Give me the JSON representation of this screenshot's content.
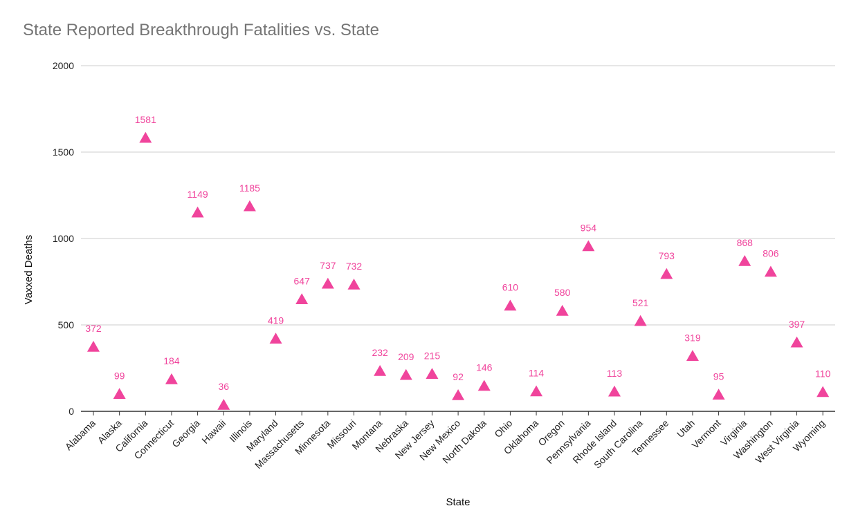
{
  "chart_data": {
    "type": "scatter",
    "title": "State Reported Breakthrough Fatalities vs. State",
    "xlabel": "State",
    "ylabel": "Vaxxed Deaths",
    "ylim": [
      0,
      2000
    ],
    "yticks": [
      0,
      500,
      1000,
      1500,
      2000
    ],
    "grid": true,
    "legend": "none",
    "marker": "triangle",
    "color": "#f0449c",
    "categories": [
      "Alabama",
      "Alaska",
      "California",
      "Connecticut",
      "Georgia",
      "Hawaii",
      "Illinois",
      "Maryland",
      "Massachusetts",
      "Minnesota",
      "Missouri",
      "Montana",
      "Nebraska",
      "New Jersey",
      "New Mexico",
      "North Dakota",
      "Ohio",
      "Oklahoma",
      "Oregon",
      "Pennsylvania",
      "Rhode Island",
      "South Carolina",
      "Tennessee",
      "Utah",
      "Vermont",
      "Virginia",
      "Washington",
      "West Virginia",
      "Wyoming"
    ],
    "values": [
      372,
      99,
      1581,
      184,
      1149,
      36,
      1185,
      419,
      647,
      737,
      732,
      232,
      209,
      215,
      92,
      146,
      610,
      114,
      580,
      954,
      113,
      521,
      793,
      319,
      95,
      868,
      806,
      397,
      110
    ]
  }
}
